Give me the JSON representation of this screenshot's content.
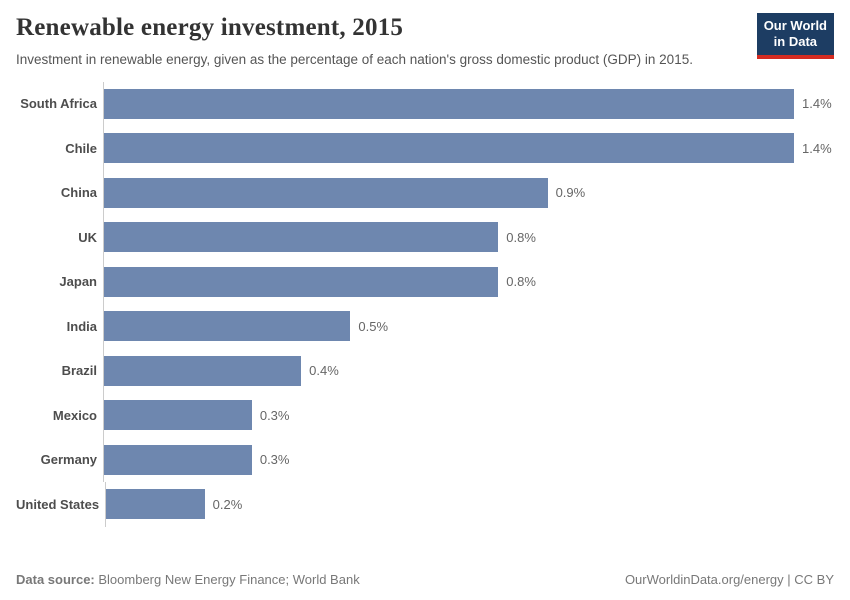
{
  "header": {
    "title": "Renewable energy investment, 2015",
    "subtitle": "Investment in renewable energy, given as the percentage of each nation's gross domestic product (GDP) in 2015.",
    "logo": {
      "line1": "Our World",
      "line2": "in Data"
    }
  },
  "chart_data": {
    "type": "bar",
    "orientation": "horizontal",
    "title": "Renewable energy investment, 2015",
    "categories": [
      "South Africa",
      "Chile",
      "China",
      "UK",
      "Japan",
      "India",
      "Brazil",
      "Mexico",
      "Germany",
      "United States"
    ],
    "values": [
      1.4,
      1.4,
      0.9,
      0.8,
      0.8,
      0.5,
      0.4,
      0.3,
      0.3,
      0.2
    ],
    "value_labels": [
      "1.4%",
      "1.4%",
      "0.9%",
      "0.8%",
      "0.8%",
      "0.5%",
      "0.4%",
      "0.3%",
      "0.3%",
      "0.2%"
    ],
    "unit": "%",
    "xlim": [
      0,
      1.4
    ],
    "grid": false,
    "legend": false,
    "sorted": "descending"
  },
  "footer": {
    "source_label": "Data source:",
    "source_text": " Bloomberg New Energy Finance; World Bank",
    "citation": "OurWorldinData.org/energy | CC BY"
  },
  "colors": {
    "bar": "#6e87af",
    "axis": "#cccccc",
    "title": "#333333",
    "subtitle": "#555555",
    "logo_bg": "#1d3d63",
    "logo_red": "#d42b21"
  }
}
